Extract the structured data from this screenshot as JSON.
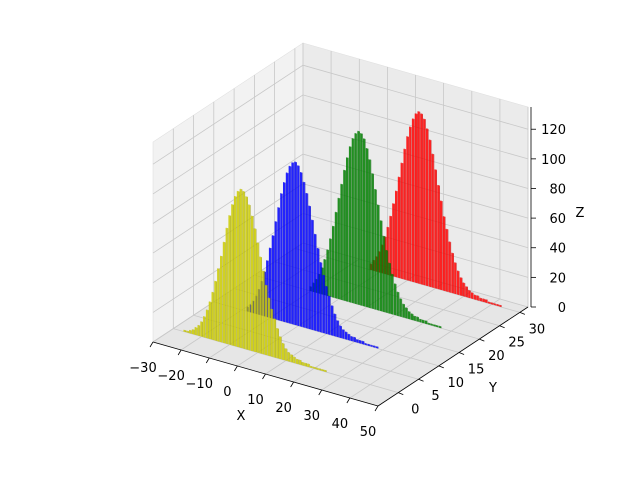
{
  "chart_data": {
    "type": "bar3d",
    "xlabel": "X",
    "ylabel": "Y",
    "zlabel": "Z",
    "xlim": [
      -30,
      50
    ],
    "ylim": [
      -5,
      32
    ],
    "zlim": [
      0,
      135
    ],
    "xticks": [
      -30,
      -20,
      -10,
      0,
      10,
      20,
      30,
      40,
      50
    ],
    "yticks": [
      0,
      5,
      10,
      15,
      20,
      25,
      30
    ],
    "zticks": [
      0,
      20,
      40,
      60,
      80,
      100,
      120
    ],
    "grid": true,
    "pane_color": "#f2f2f2",
    "series": [
      {
        "color": "#ff0000",
        "y": 30,
        "x": [
          -3,
          -2,
          -1,
          0,
          1,
          2,
          3,
          4,
          5,
          6,
          7,
          8,
          9,
          10,
          11,
          12,
          13,
          14,
          15,
          16,
          17,
          18,
          19,
          20,
          21,
          22,
          23,
          24,
          25,
          26,
          27,
          28,
          29,
          30,
          31,
          32,
          33,
          34,
          35,
          36,
          37,
          38,
          39,
          40,
          41,
          42,
          43
        ],
        "values": [
          4,
          7,
          10,
          14,
          19,
          25,
          32,
          40,
          49,
          58,
          68,
          78,
          88,
          97,
          104,
          110,
          114,
          116,
          115,
          112,
          106,
          99,
          90,
          80,
          70,
          60,
          50,
          42,
          34,
          27,
          21,
          16,
          12,
          9,
          7,
          5,
          4,
          3,
          3,
          2,
          2,
          2,
          1,
          1,
          1,
          1,
          1
        ]
      },
      {
        "color": "#008000",
        "y": 20,
        "x": [
          -10,
          -9,
          -8,
          -7,
          -6,
          -5,
          -4,
          -3,
          -2,
          -1,
          0,
          1,
          2,
          3,
          4,
          5,
          6,
          7,
          8,
          9,
          10,
          11,
          12,
          13,
          14,
          15,
          16,
          17,
          18,
          19,
          20,
          21,
          22,
          23,
          24,
          25,
          26,
          27,
          28,
          29,
          30,
          31,
          32,
          33,
          34,
          35,
          36
        ],
        "values": [
          3,
          6,
          9,
          13,
          18,
          24,
          31,
          39,
          48,
          58,
          68,
          78,
          88,
          97,
          105,
          111,
          115,
          117,
          116,
          113,
          107,
          100,
          91,
          81,
          71,
          61,
          51,
          42,
          34,
          27,
          21,
          16,
          12,
          9,
          7,
          5,
          4,
          3,
          3,
          2,
          2,
          2,
          1,
          1,
          1,
          1,
          1
        ]
      },
      {
        "color": "#0000ff",
        "y": 10,
        "x": [
          -18,
          -17,
          -16,
          -15,
          -14,
          -13,
          -12,
          -11,
          -10,
          -9,
          -8,
          -7,
          -6,
          -5,
          -4,
          -3,
          -2,
          -1,
          0,
          1,
          2,
          3,
          4,
          5,
          6,
          7,
          8,
          9,
          10,
          11,
          12,
          13,
          14,
          15,
          16,
          17,
          18,
          19,
          20,
          21,
          22,
          23,
          24,
          25,
          26,
          27,
          28
        ],
        "values": [
          3,
          5,
          8,
          12,
          17,
          23,
          30,
          38,
          47,
          56,
          66,
          76,
          86,
          94,
          101,
          106,
          109,
          110,
          108,
          104,
          98,
          91,
          83,
          74,
          65,
          56,
          47,
          39,
          32,
          26,
          20,
          15,
          11,
          8,
          6,
          5,
          4,
          3,
          3,
          2,
          2,
          2,
          1,
          1,
          1,
          1,
          1
        ]
      },
      {
        "color": "#cccc00",
        "y": 0,
        "x": [
          -26,
          -25,
          -24,
          -23,
          -22,
          -21,
          -20,
          -19,
          -18,
          -17,
          -16,
          -15,
          -14,
          -13,
          -12,
          -11,
          -10,
          -9,
          -8,
          -7,
          -6,
          -5,
          -4,
          -3,
          -2,
          -1,
          0,
          1,
          2,
          3,
          4,
          5,
          6,
          7,
          8,
          9,
          10,
          11,
          12,
          13,
          14,
          15,
          16,
          17,
          18,
          19,
          20,
          21,
          22,
          23,
          24
        ],
        "values": [
          1,
          1,
          2,
          3,
          5,
          7,
          10,
          14,
          19,
          25,
          32,
          40,
          49,
          58,
          68,
          78,
          87,
          95,
          101,
          105,
          107,
          106,
          103,
          98,
          91,
          83,
          74,
          65,
          56,
          47,
          39,
          32,
          26,
          20,
          15,
          11,
          8,
          6,
          5,
          4,
          3,
          3,
          2,
          2,
          2,
          1,
          1,
          1,
          1,
          1,
          1
        ]
      }
    ]
  }
}
